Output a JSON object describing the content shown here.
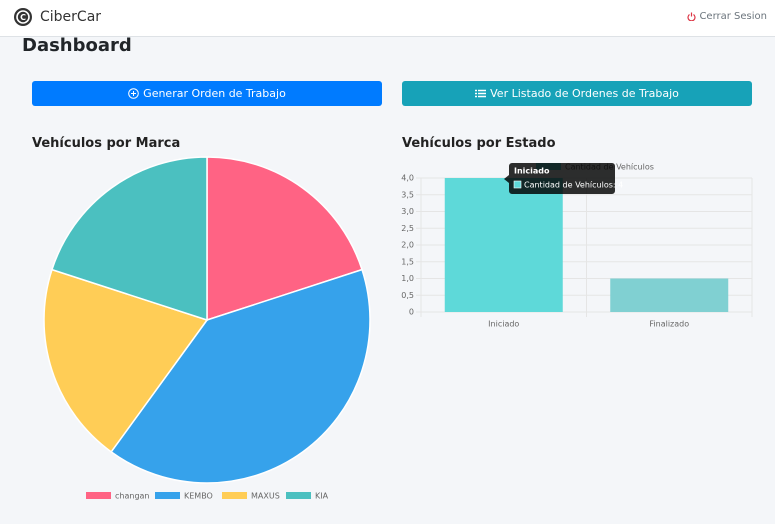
{
  "header": {
    "brand": "CiberCar",
    "logout": "Cerrar Sesion"
  },
  "page_title": "Dashboard",
  "buttons": [
    "Generar Orden de Trabajo",
    "Ver Listado de Ordenes de Trabajo"
  ],
  "chart_data": [
    {
      "type": "pie",
      "title": "Vehículos por Marca",
      "categories": [
        "changan",
        "KEMBO",
        "MAXUS",
        "KIA"
      ],
      "values": [
        1,
        2,
        1,
        1
      ],
      "colors": [
        "#ff6384",
        "#36a2eb",
        "#ffcd56",
        "#4bc0c0"
      ],
      "legend": "bottom"
    },
    {
      "type": "bar",
      "title": "Vehículos por Estado",
      "categories": [
        "Iniciado",
        "Finalizado"
      ],
      "series": [
        {
          "name": "Cantidad de Vehículos",
          "values": [
            4,
            1
          ],
          "colors": [
            "#5ed9d9",
            "#80d0d2"
          ]
        }
      ],
      "ylim": [
        0,
        4
      ],
      "yticks": [
        0,
        {
          "value": 0.5,
          "label": "0,5"
        },
        {
          "value": 1,
          "label": "1,0"
        },
        {
          "value": 1.5,
          "label": "1,5"
        },
        {
          "value": 2,
          "label": "2,0"
        },
        {
          "value": 2.5,
          "label": "2,5"
        },
        {
          "value": 3,
          "label": "3,0"
        },
        {
          "value": 3.5,
          "label": "3,5"
        },
        {
          "value": 4,
          "label": "4,0"
        }
      ],
      "grid": true,
      "legend": "top",
      "tooltip": {
        "title": "Iniciado",
        "body": "Cantidad de Vehículos: 4"
      }
    }
  ]
}
